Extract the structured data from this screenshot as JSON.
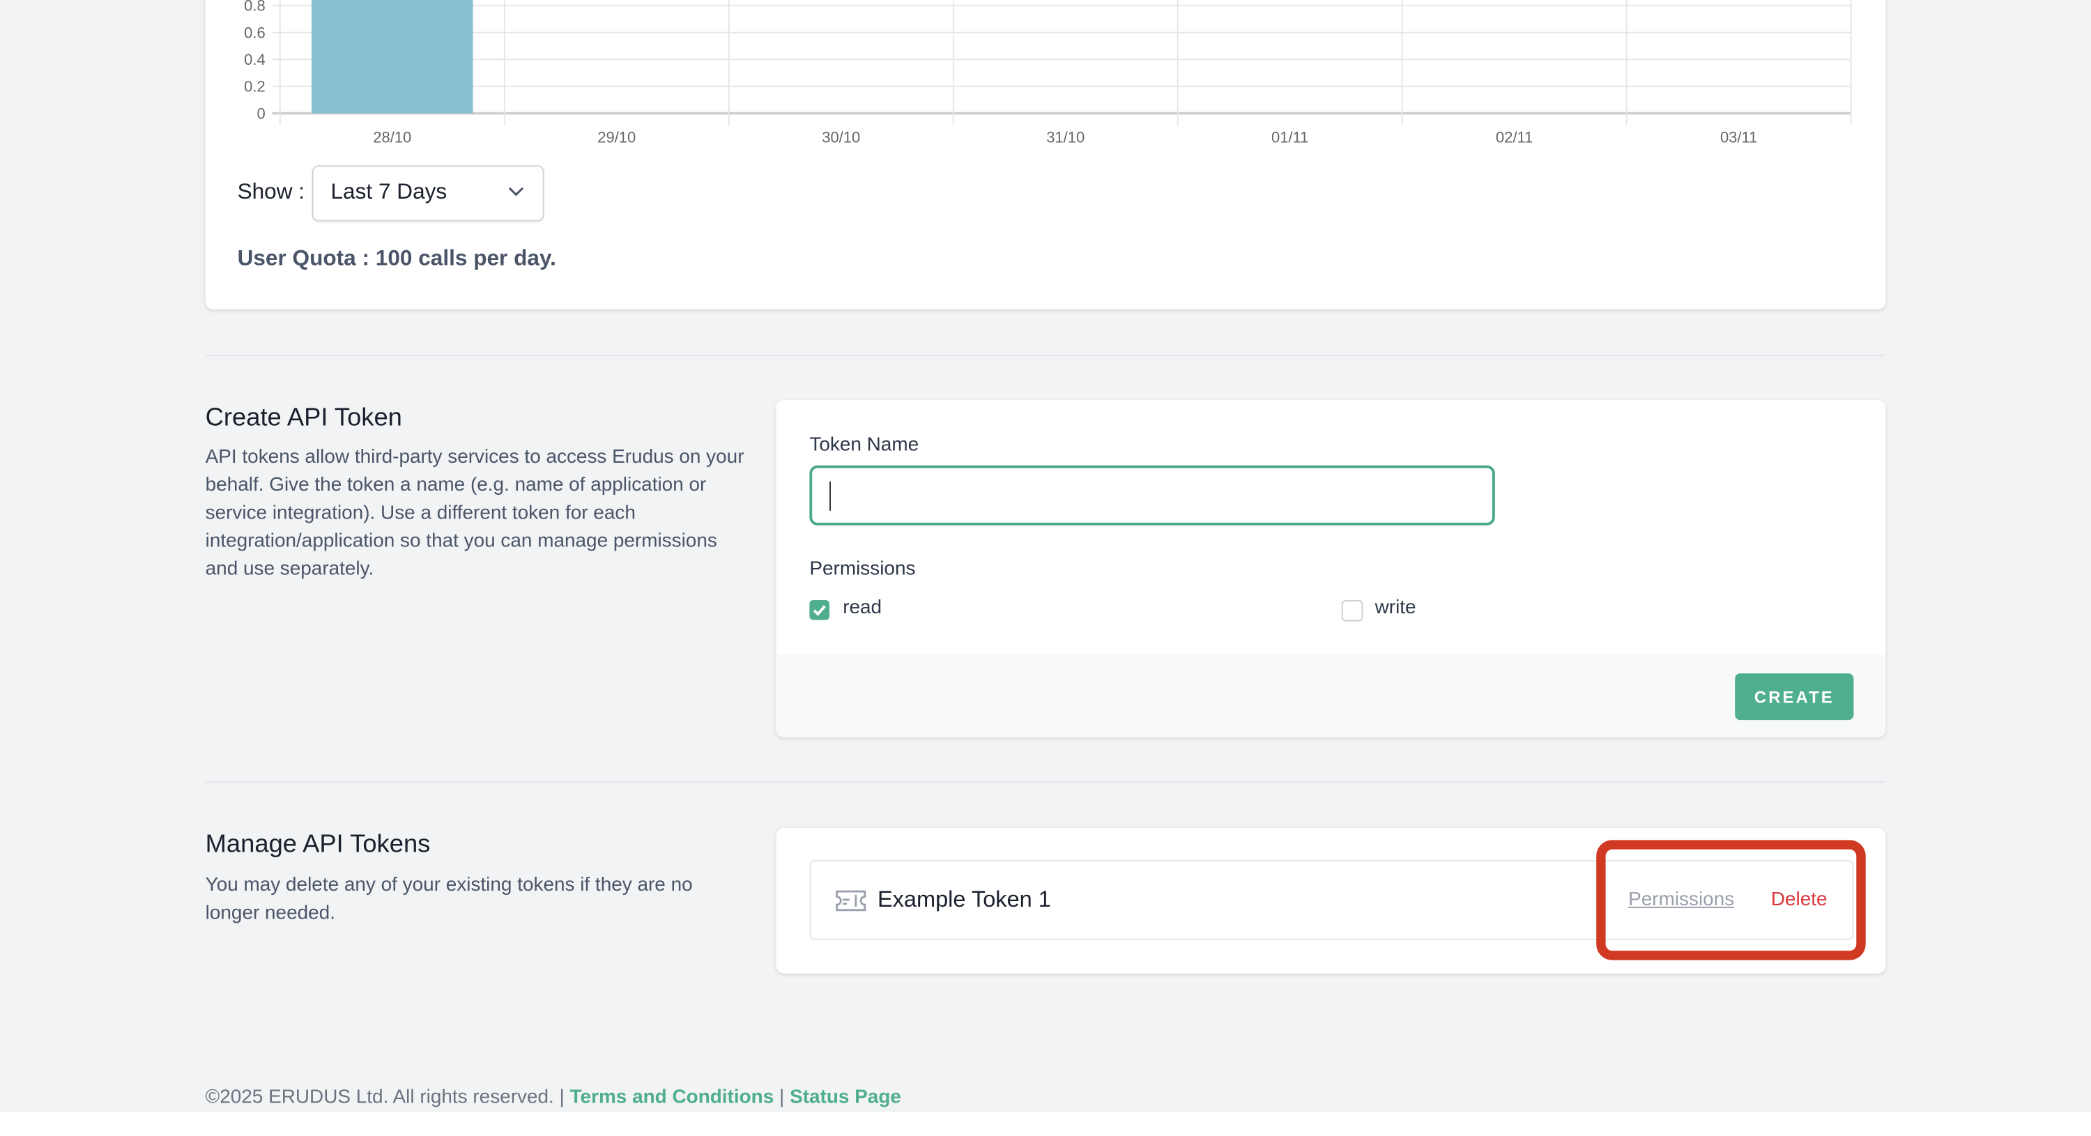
{
  "chart_data": {
    "type": "bar",
    "categories": [
      "28/10",
      "29/10",
      "30/10",
      "31/10",
      "01/11",
      "02/11",
      "03/11"
    ],
    "values": [
      1,
      0,
      0,
      0,
      0,
      0,
      0
    ],
    "yticks": [
      "0",
      "0.2",
      "0.4",
      "0.6",
      "0.8"
    ],
    "ylim": [
      0,
      1
    ],
    "grid": true,
    "bar_color": "#88bfd0"
  },
  "usage": {
    "show_label": "Show :",
    "range_selected": "Last 7 Days",
    "quota": "User Quota : 100 calls per day."
  },
  "create": {
    "title": "Create API Token",
    "description": "API tokens allow third-party services to access Erudus on your behalf. Give the token a name (e.g. name of application or service integration). Use a different token for each integration/application so that you can manage permissions and use separately.",
    "token_name_label": "Token Name",
    "token_name_value": "",
    "permissions_label": "Permissions",
    "permissions": [
      {
        "label": "read",
        "checked": true
      },
      {
        "label": "write",
        "checked": false
      }
    ],
    "create_button": "CREATE"
  },
  "manage": {
    "title": "Manage API Tokens",
    "description": "You may delete any of your existing tokens if they are no longer needed.",
    "tokens": [
      {
        "name": "Example Token 1",
        "permissions_link": "Permissions",
        "delete_link": "Delete"
      }
    ]
  },
  "footer": {
    "copyright": "©2025 ERUDUS Ltd. All rights reserved.",
    "separator": "|",
    "terms": "Terms and Conditions",
    "status": "Status Page"
  },
  "colors": {
    "accent": "#4fae8d",
    "danger": "#d9363e",
    "highlight": "#d13a22"
  }
}
